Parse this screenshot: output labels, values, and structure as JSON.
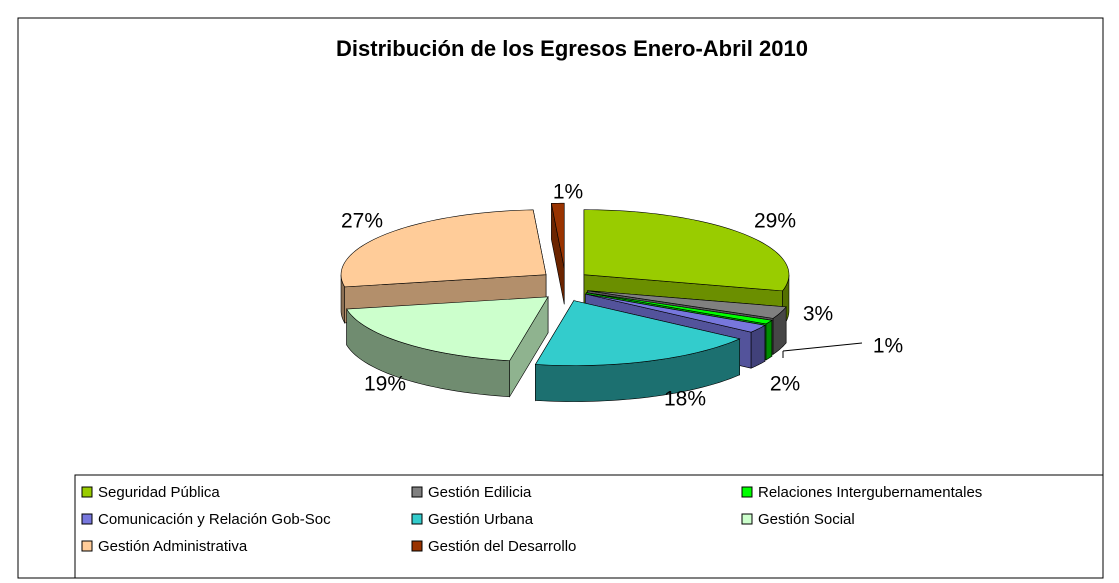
{
  "chart_data": {
    "type": "pie",
    "title": "Distribución de los Egresos Enero-Abril 2010",
    "categories": [
      "Seguridad Pública",
      "Gestión Edilicia",
      "Relaciones Intergubernamentales",
      "Comunicación y Relación Gob-Soc",
      "Gestión Urbana",
      "Gestión Social",
      "Gestión Administrativa",
      "Gestión del Desarrollo"
    ],
    "values": [
      29,
      3,
      1,
      2,
      18,
      19,
      27,
      1
    ],
    "value_labels": [
      "29%",
      "3%",
      "1%",
      "2%",
      "18%",
      "19%",
      "27%",
      "1%"
    ],
    "colors": [
      "#99cc00",
      "#808080",
      "#00ff00",
      "#7777dd",
      "#33cccc",
      "#ccffcc",
      "#ffcc99",
      "#993300"
    ],
    "legend": "bottom"
  }
}
